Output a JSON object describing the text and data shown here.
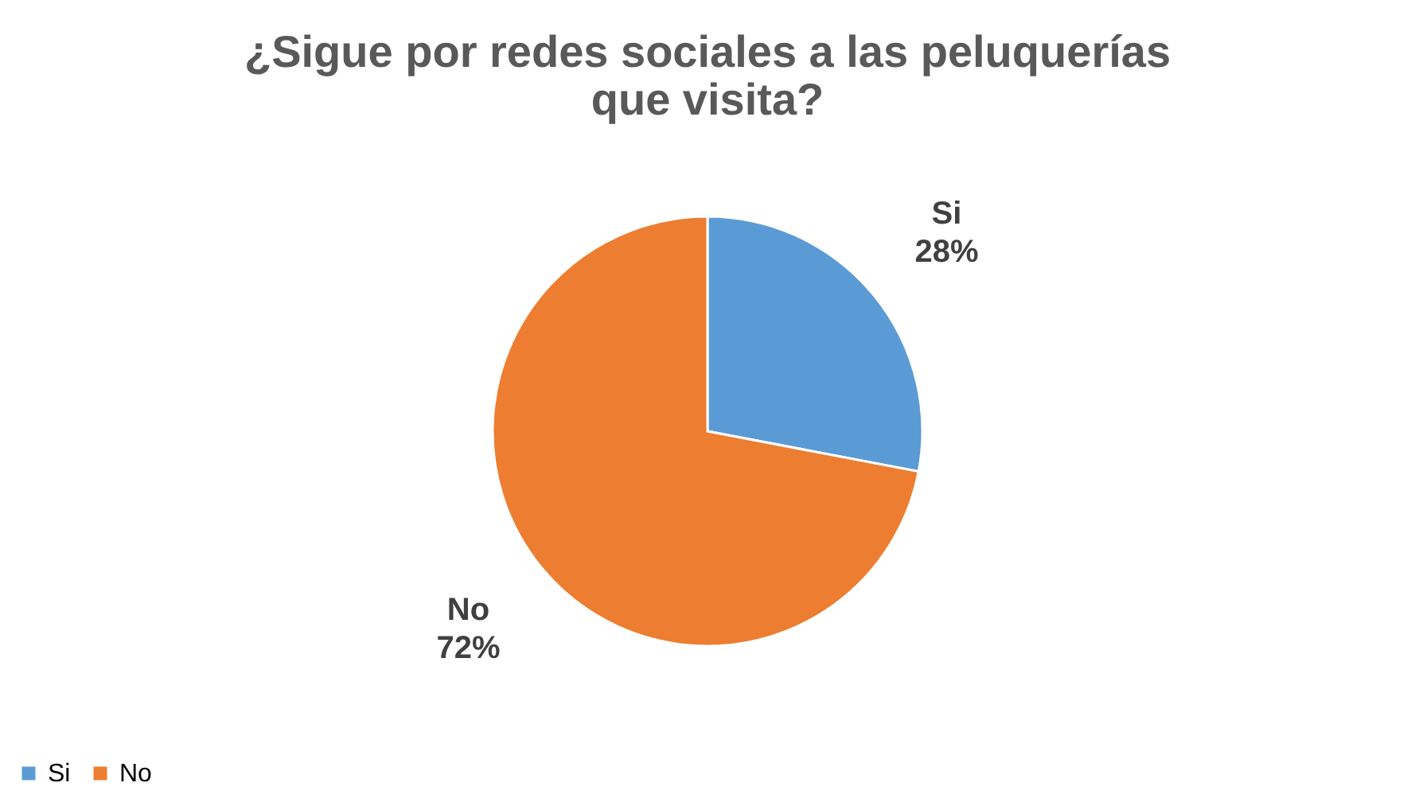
{
  "chart_data": {
    "type": "pie",
    "title": "¿Sigue por redes sociales a las peluquerías que visita?",
    "categories": [
      "Si",
      "No"
    ],
    "values": [
      28,
      72
    ],
    "colors": [
      "#5b9bd5",
      "#ed7d31"
    ],
    "value_labels": [
      "28%",
      "72%"
    ],
    "legend": "bottom"
  }
}
